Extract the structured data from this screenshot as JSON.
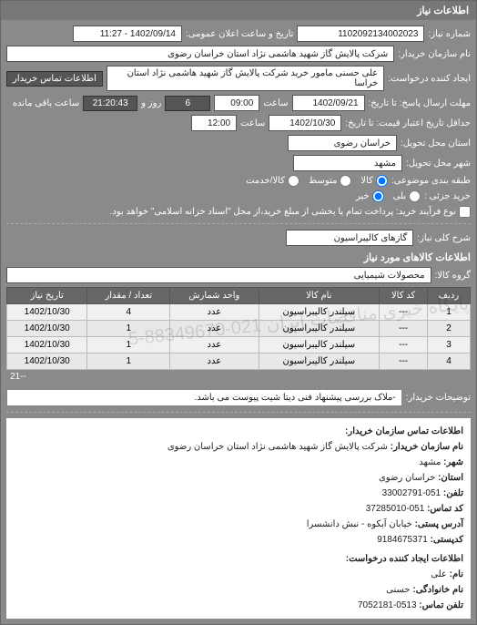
{
  "panel_title": "اطلاعات نیاز",
  "fields": {
    "req_no_label": "شماره نیاز:",
    "req_no": "1102092134002023",
    "pub_datetime_label": "تاریخ و ساعت اعلان عمومی:",
    "pub_datetime": "1402/09/14 - 11:27",
    "buyer_org_label": "نام سازمان خریدار:",
    "buyer_org": "شرکت پالایش گاز شهید هاشمی نژاد   استان خراسان رضوی",
    "requester_label": "ایجاد کننده درخواست:",
    "requester": "علی حسنی مامور خرید شرکت پالایش گاز شهید هاشمی نژاد   استان خراسا",
    "buyer_contact_btn": "اطلاعات تماس خریدار",
    "deadline_label": "مهلت ارسال پاسخ: تا تاریخ:",
    "deadline_date": "1402/09/21",
    "deadline_time_label": "ساعت",
    "deadline_time": "09:00",
    "days_label": "روز و",
    "days": "6",
    "remain_label": "ساعت باقی مانده",
    "remain": "21:20:43",
    "valid_label": "حداقل تاریخ اعتبار قیمت: تا تاریخ:",
    "valid_date": "1402/10/30",
    "valid_time_label": "ساعت",
    "valid_time": "12:00",
    "delivery_prov_label": "استان محل تحویل:",
    "delivery_prov": "خراسان رضوی",
    "delivery_city_label": "شهر محل تحویل:",
    "delivery_city": "مشهد",
    "class_label": "طبقه بندی موضوعی:",
    "class_kala": "کالا",
    "class_mid": "متوسط",
    "class_service": "کالا/خدمت",
    "need_label": "شرح کلی نیاز:",
    "need": "گازهای کالیبراسیون",
    "partial_label": "خرید جزئی :",
    "partial_yes": "بلی",
    "partial_no": "خیر",
    "process_note": "نوع فرآیند خرید:   پرداخت تمام یا بخشی از مبلغ خرید،از محل \"اسناد خزانه اسلامی\" خواهد بود.",
    "items_title": "اطلاعات کالاهای مورد نیاز",
    "group_label": "گروه کالا:",
    "group": "محصولات شیمیایی",
    "buyer_note_label": "توضیحات خریدار:",
    "buyer_note": "-ملاک بررسی پیشنهاد فنی دیتا شیت پیوست می باشد."
  },
  "items_table": {
    "columns": [
      "ردیف",
      "کد کالا",
      "نام کالا",
      "واحد شمارش",
      "تعداد / مقدار",
      "تاریخ نیاز"
    ],
    "rows": [
      [
        "1",
        "---",
        "سیلندر کالیبراسیون",
        "عدد",
        "4",
        "1402/10/30"
      ],
      [
        "2",
        "---",
        "سیلندر کالیبراسیون",
        "عدد",
        "1",
        "1402/10/30"
      ],
      [
        "3",
        "---",
        "سیلندر کالیبراسیون",
        "عدد",
        "1",
        "1402/10/30"
      ],
      [
        "4",
        "---",
        "سیلندر کالیبراسیون",
        "عدد",
        "1",
        "1402/10/30"
      ]
    ],
    "pager": "--21"
  },
  "contact": {
    "section1_title": "اطلاعات تماس سازمان خریدار:",
    "org_name_label": "نام سازمان خریدار:",
    "org_name": "شرکت پالایش گاز شهید هاشمی نژاد استان خراسان رضوی",
    "city_label": "شهر:",
    "city": "مشهد",
    "prov_label": "استان:",
    "prov": "خراسان رضوی",
    "tel_label": "تلفن:",
    "tel": "051-33002791",
    "fax_label": "کد تماس:",
    "fax": "051-37285010",
    "addr_label": "آدرس پستی:",
    "addr": "خیابان آبکوه - نبش دانشسرا",
    "post_label": "کدپستی:",
    "post": "9184675371",
    "section2_title": "اطلاعات ایجاد کننده درخواست:",
    "fname_label": "نام:",
    "fname": "علی",
    "lname_label": "نام خانوادگی:",
    "lname": "حسنی",
    "ctel_label": "تلفن تماس:",
    "ctel": "0513-7052181"
  },
  "watermark": "پایگاه خبری مناقصات ایران\n021-88349670-5",
  "colors": {
    "panel_bg": "#8a8a8a",
    "header_bg": "#777777",
    "input_bg": "#ffffff",
    "dark_box": "#555555",
    "table_header": "#666666"
  }
}
